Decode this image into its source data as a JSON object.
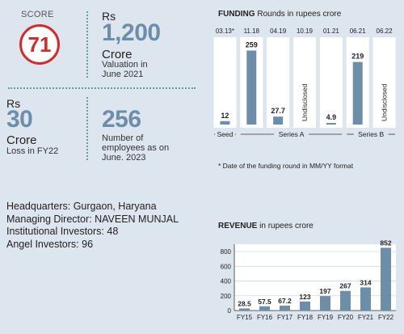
{
  "stats": {
    "score_label": "SCORE",
    "score": "71",
    "valuation": {
      "prefix": "Rs",
      "value": "1,200",
      "unit": "Crore",
      "caption1": "Valuation in",
      "caption2": "June 2021"
    },
    "loss": {
      "prefix": "Rs",
      "value": "30",
      "unit": "Crore",
      "caption": "Loss in FY22"
    },
    "employees": {
      "value": "256",
      "caption1": "Number of",
      "caption2": "employees as on",
      "caption3": "June. 2023"
    }
  },
  "info": {
    "headquarters_label": "Headquarters:",
    "headquarters": "Gurgaon, Haryana",
    "md_label": "Managing Director:",
    "md": "NAVEEN MUNJAL",
    "institutional_label": "Institutional Investors:",
    "institutional": "48",
    "angel_label": "Angel Investors:",
    "angel": "96"
  },
  "colors": {
    "bar": "#6d8ea8",
    "accent": "#d42a2a",
    "divider": "#5aa79a"
  },
  "chart_data": [
    {
      "type": "bar",
      "title_bold": "FUNDING",
      "title_rest": "Rounds in rupees crore",
      "categories": [
        "03.13*",
        "11.18",
        "04.19",
        "10.19",
        "01.21",
        "06.21",
        "06.22"
      ],
      "values": [
        12,
        259,
        27.7,
        null,
        4.9,
        219,
        null
      ],
      "value_labels": [
        "12",
        "259",
        "27.7",
        "Undisclosed",
        "4.9",
        "219",
        "Undisclosed"
      ],
      "groups": [
        {
          "label": "Seed",
          "from": 0,
          "to": 0
        },
        {
          "label": "Series A",
          "from": 1,
          "to": 4
        },
        {
          "label": "Series B",
          "from": 5,
          "to": 6
        }
      ],
      "footnote": "* Date of the funding round in MM/YY format",
      "ylim": [
        0,
        300
      ]
    },
    {
      "type": "bar",
      "title_bold": "REVENUE",
      "title_rest": "in rupees crore",
      "categories": [
        "FY15",
        "FY16",
        "FY17",
        "FY18",
        "FY19",
        "FY20",
        "FY21",
        "FY22"
      ],
      "values": [
        28.5,
        57.5,
        67.2,
        123,
        197,
        267,
        314,
        852
      ],
      "value_labels": [
        "28.5",
        "57.5",
        "67.2",
        "123",
        "197",
        "267",
        "314",
        "852"
      ],
      "yticks": [
        "0",
        "200",
        "400",
        "600",
        "800"
      ],
      "ylim": [
        0,
        900
      ]
    }
  ]
}
